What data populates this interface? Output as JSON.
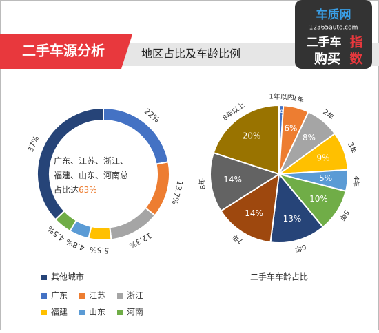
{
  "header": {
    "title": "二手车源分析",
    "subtitle": "地区占比及车龄比例"
  },
  "logo": {
    "brand": "车质网",
    "site": "12365auto.com",
    "line1": "二手车",
    "line1b": "指",
    "line2": "购买",
    "line2b": "数"
  },
  "chart_data": [
    {
      "type": "donut",
      "categories": [
        "广东",
        "江苏",
        "浙江",
        "福建",
        "山东",
        "河南",
        "其他城市"
      ],
      "values": [
        22,
        13.7,
        12.3,
        5.5,
        4.8,
        4.5,
        37
      ],
      "value_labels": [
        "22%",
        "13.7%",
        "12.3%",
        "5.5%",
        "4.8%",
        "4.5%",
        "37%"
      ],
      "colors": [
        "#4472c4",
        "#ed7d31",
        "#a5a5a5",
        "#ffc000",
        "#5b9bd5",
        "#70ad47",
        "#264478"
      ],
      "annotation": "广东、江苏、浙江、福建、山东、河南总占比达",
      "annotation_value": "63%",
      "legend": true
    },
    {
      "type": "pie",
      "title": "二手车车龄占比",
      "categories": [
        "1年以内",
        "1年",
        "2年",
        "3年",
        "4年",
        "5年",
        "6年",
        "7年",
        "8年",
        "8年以上"
      ],
      "values": [
        1,
        6,
        8,
        9,
        5,
        10,
        13,
        14,
        14,
        20
      ],
      "value_labels": [
        "1%",
        "6%",
        "8%",
        "9%",
        "5%",
        "10%",
        "13%",
        "14%",
        "14%",
        "20%"
      ],
      "colors": [
        "#4472c4",
        "#ed7d31",
        "#a5a5a5",
        "#ffc000",
        "#5b9bd5",
        "#70ad47",
        "#264478",
        "#9e480e",
        "#636363",
        "#997300"
      ],
      "legend": false
    }
  ]
}
